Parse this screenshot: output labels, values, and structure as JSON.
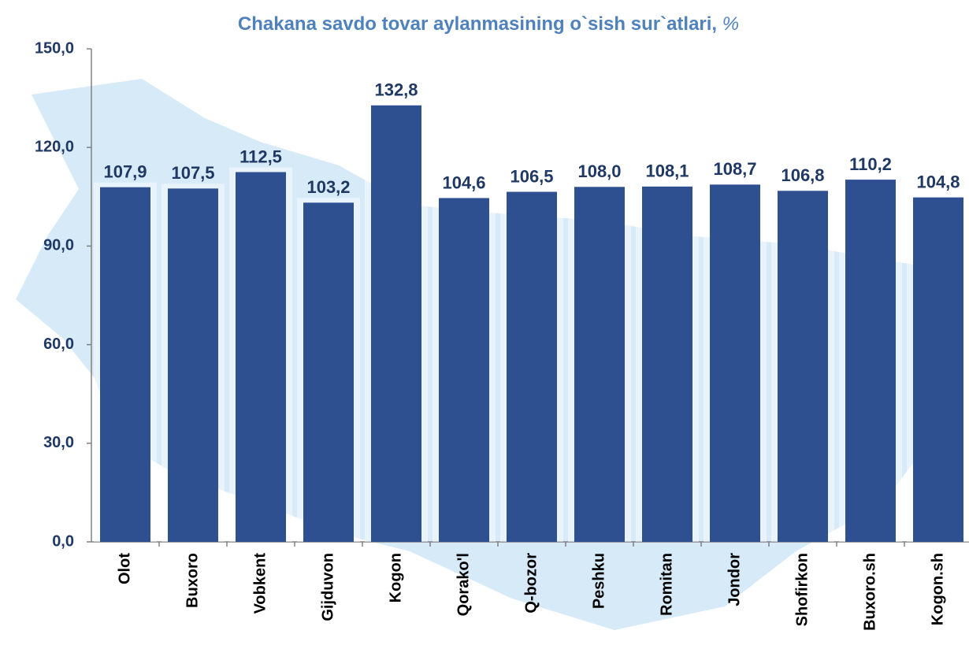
{
  "chart_data": {
    "type": "bar",
    "title": "Chakana savdo tovar aylanmasining o`sish sur`atlari,",
    "unit": "%",
    "categories": [
      "Olot",
      "Buxoro",
      "Vobkent",
      "Gijduvon",
      "Kogon",
      "Qorako'l",
      "Q-bozor",
      "Peshku",
      "Romitan",
      "Jondor",
      "Shofirkon",
      "Buxoro.sh",
      "Kogon.sh"
    ],
    "values": [
      107.9,
      107.5,
      112.5,
      103.2,
      132.8,
      104.6,
      106.5,
      108.0,
      108.1,
      108.7,
      106.8,
      110.2,
      104.8
    ],
    "value_labels": [
      "107,9",
      "107,5",
      "112,5",
      "103,2",
      "132,8",
      "104,6",
      "106,5",
      "108,0",
      "108,1",
      "108,7",
      "106,8",
      "110,2",
      "104,8"
    ],
    "color": "#2f5090",
    "ylim": [
      0,
      150
    ],
    "yticks": [
      {
        "value": 0,
        "label": "0,0"
      },
      {
        "value": 30,
        "label": "30,0"
      },
      {
        "value": 60,
        "label": "60,0"
      },
      {
        "value": 90,
        "label": "90,0"
      },
      {
        "value": 120,
        "label": "120,0"
      },
      {
        "value": 150,
        "label": "150,0"
      }
    ],
    "grid": false
  }
}
